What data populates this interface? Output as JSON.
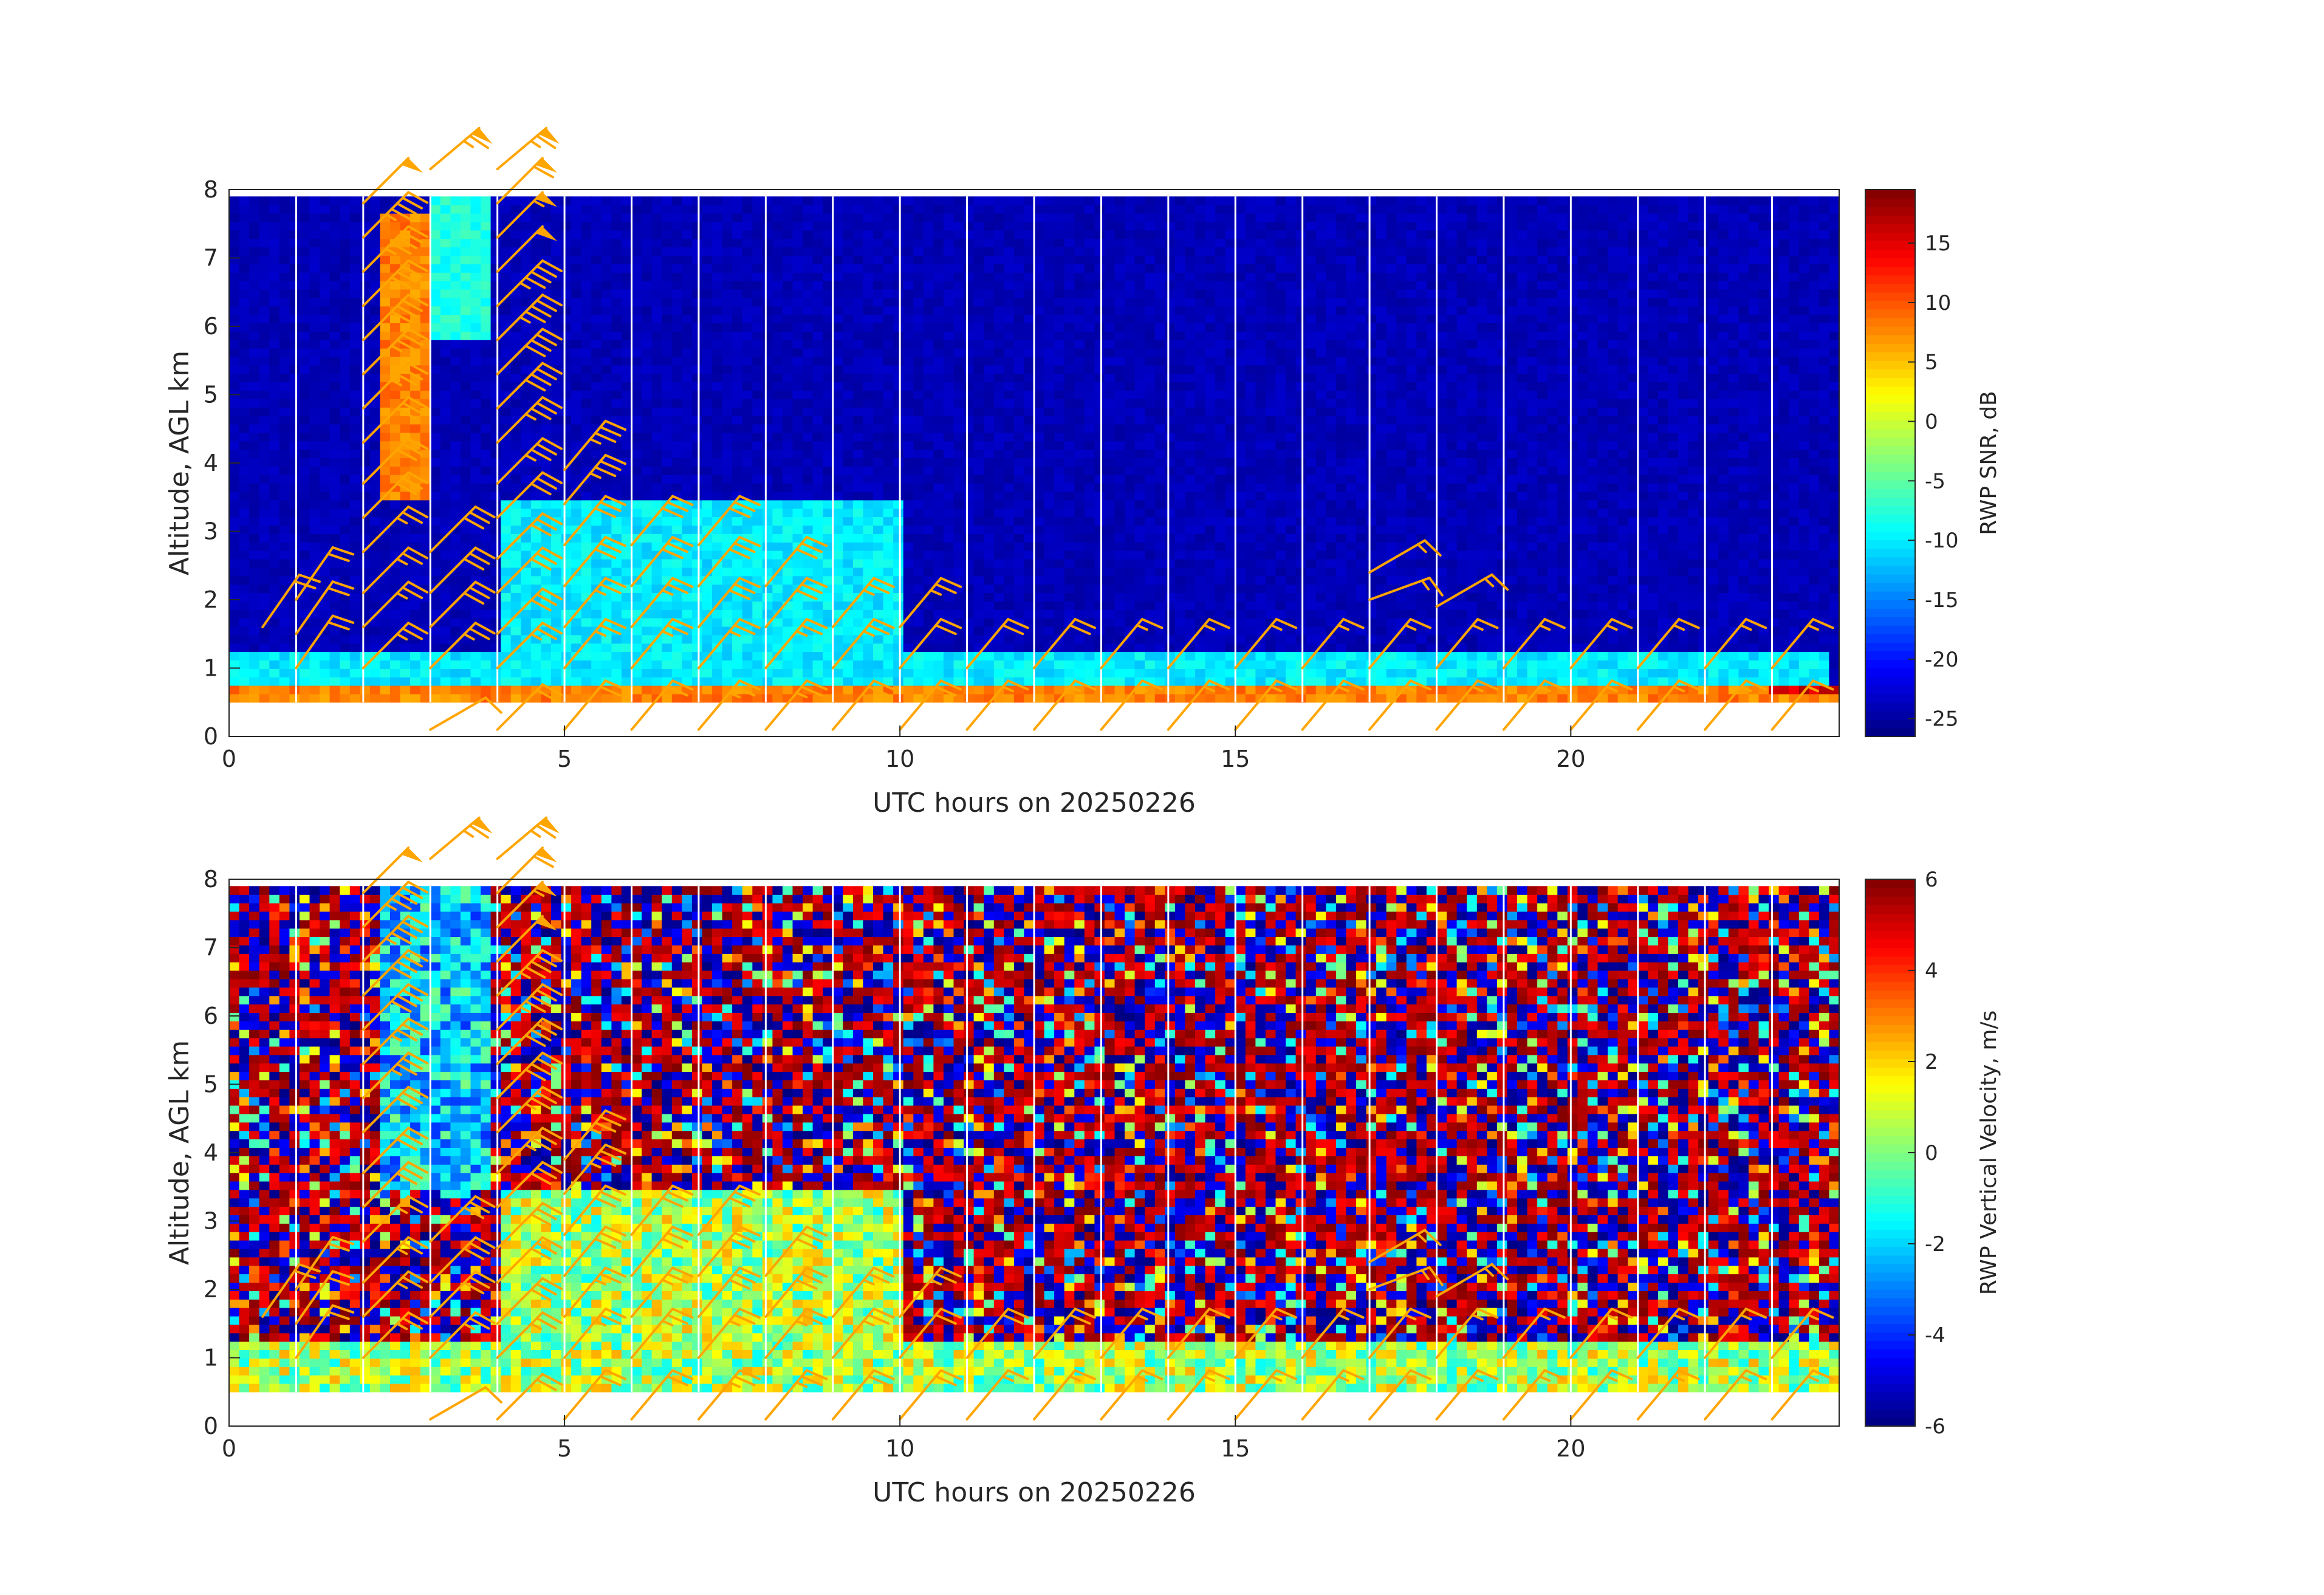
{
  "chart_data": [
    {
      "type": "heatmap",
      "name": "snr",
      "xlabel": "UTC hours on 20250226",
      "ylabel": "Altitude, AGL km",
      "xlim": [
        0,
        24
      ],
      "ylim": [
        0,
        8
      ],
      "xticks": [
        0,
        5,
        10,
        15,
        20
      ],
      "yticks": [
        0,
        1,
        2,
        3,
        4,
        5,
        6,
        7,
        8
      ],
      "colorbar": {
        "label": "RWP SNR, dB",
        "min": -26.5,
        "max": 19.5,
        "ticks": [
          15,
          10,
          5,
          0,
          -5,
          -10,
          -15,
          -20,
          -25
        ],
        "colormap": "jet"
      },
      "data_altitude_range_km": [
        0.5,
        7.9
      ],
      "background_value": -24,
      "features": [
        {
          "desc": "strong near-surface echo",
          "x": [
            0,
            24
          ],
          "alt": [
            0.5,
            0.8
          ],
          "value": 8
        },
        {
          "desc": "boundary layer echo",
          "x": [
            0,
            23.9
          ],
          "alt": [
            0.8,
            1.3
          ],
          "value": -10
        },
        {
          "desc": "precipitation column",
          "x": [
            2.3,
            3.0
          ],
          "alt": [
            3.5,
            7.6
          ],
          "value": 8
        },
        {
          "desc": "upper cloud plume",
          "x": [
            3.0,
            3.9
          ],
          "alt": [
            5.8,
            7.9
          ],
          "value": -8
        },
        {
          "desc": "descending layers",
          "x": [
            4.0,
            10.0
          ],
          "alt": [
            1.2,
            3.4
          ],
          "value": -10
        },
        {
          "desc": "bright surface band late day",
          "x": [
            23.0,
            24.0
          ],
          "alt": [
            0.6,
            0.8
          ],
          "value": 16
        }
      ],
      "gap_lines_hours": [
        1,
        2,
        3,
        4,
        5,
        6,
        7,
        8,
        9,
        10,
        11,
        12,
        13,
        14,
        15,
        16,
        17,
        18,
        19,
        20,
        21,
        22,
        23
      ]
    },
    {
      "type": "heatmap",
      "name": "vertical_velocity",
      "xlabel": "UTC hours on 20250226",
      "ylabel": "Altitude, AGL km",
      "xlim": [
        0,
        24
      ],
      "ylim": [
        0,
        8
      ],
      "xticks": [
        0,
        5,
        10,
        15,
        20
      ],
      "yticks": [
        0,
        1,
        2,
        3,
        4,
        5,
        6,
        7,
        8
      ],
      "colorbar": {
        "label": "RWP Vertical Velocity, m/s",
        "min": -6,
        "max": 6,
        "ticks": [
          6,
          4,
          2,
          0,
          -2,
          -4,
          -6
        ],
        "colormap": "jet"
      },
      "data_altitude_range_km": [
        0.5,
        7.9
      ],
      "background": "noise",
      "features": [
        {
          "desc": "near-zero velocities in boundary layer",
          "x": [
            0,
            24
          ],
          "alt": [
            0.5,
            1.3
          ],
          "value": 0.5
        },
        {
          "desc": "falling precipitation",
          "x": [
            2.3,
            3.9
          ],
          "alt": [
            3.5,
            7.9
          ],
          "value": -2
        },
        {
          "desc": "descending layers",
          "x": [
            4.0,
            10.0
          ],
          "alt": [
            1.2,
            3.4
          ],
          "value": 0.5
        }
      ],
      "gap_lines_hours": [
        1,
        2,
        3,
        4,
        5,
        6,
        7,
        8,
        9,
        10,
        11,
        12,
        13,
        14,
        15,
        16,
        17,
        18,
        19,
        20,
        21,
        22,
        23
      ]
    }
  ],
  "wind_barbs": {
    "color": "#ffa500",
    "units": "knots",
    "profiles": [
      {
        "hour": 0.5,
        "barbs": [
          [
            1.6,
            35,
            20
          ]
        ]
      },
      {
        "hour": 1.0,
        "barbs": [
          [
            1.0,
            35,
            20
          ],
          [
            1.5,
            35,
            20
          ],
          [
            2.0,
            35,
            20
          ]
        ]
      },
      {
        "hour": 2.0,
        "barbs": [
          [
            1.0,
            45,
            25
          ],
          [
            1.6,
            45,
            25
          ],
          [
            2.1,
            45,
            25
          ],
          [
            2.7,
            45,
            25
          ],
          [
            3.2,
            45,
            30
          ],
          [
            3.7,
            45,
            30
          ],
          [
            4.3,
            45,
            30
          ],
          [
            4.8,
            45,
            35
          ],
          [
            5.3,
            45,
            35
          ],
          [
            5.8,
            45,
            40
          ],
          [
            6.3,
            45,
            40
          ],
          [
            6.8,
            45,
            45
          ],
          [
            7.3,
            45,
            45
          ],
          [
            7.8,
            45,
            50
          ]
        ]
      },
      {
        "hour": 3.0,
        "barbs": [
          [
            0.1,
            60,
            10
          ],
          [
            1.0,
            45,
            25
          ],
          [
            1.6,
            45,
            30
          ],
          [
            2.1,
            45,
            30
          ],
          [
            2.7,
            45,
            30
          ],
          [
            8.3,
            50,
            65
          ]
        ]
      },
      {
        "hour": 4.0,
        "barbs": [
          [
            0.1,
            45,
            20
          ],
          [
            1.0,
            45,
            25
          ],
          [
            1.5,
            45,
            30
          ],
          [
            2.1,
            45,
            30
          ],
          [
            2.6,
            45,
            30
          ],
          [
            3.2,
            45,
            30
          ],
          [
            3.7,
            45,
            35
          ],
          [
            4.3,
            45,
            35
          ],
          [
            4.8,
            45,
            40
          ],
          [
            5.3,
            45,
            40
          ],
          [
            5.8,
            45,
            45
          ],
          [
            6.3,
            45,
            45
          ],
          [
            6.8,
            45,
            50
          ],
          [
            7.3,
            45,
            55
          ],
          [
            7.8,
            45,
            60
          ],
          [
            8.3,
            50,
            65
          ]
        ]
      },
      {
        "hour": 5.0,
        "barbs": [
          [
            0.1,
            40,
            20
          ],
          [
            1.0,
            40,
            25
          ],
          [
            1.6,
            40,
            25
          ],
          [
            2.2,
            40,
            30
          ],
          [
            2.8,
            40,
            30
          ],
          [
            3.4,
            40,
            35
          ],
          [
            3.9,
            40,
            35
          ]
        ]
      },
      {
        "hour": 6.0,
        "barbs": [
          [
            0.1,
            40,
            20
          ],
          [
            1.0,
            40,
            25
          ],
          [
            1.6,
            40,
            25
          ],
          [
            2.2,
            40,
            30
          ],
          [
            2.8,
            40,
            30
          ]
        ]
      },
      {
        "hour": 7.0,
        "barbs": [
          [
            0.1,
            40,
            25
          ],
          [
            1.0,
            40,
            25
          ],
          [
            1.6,
            40,
            30
          ],
          [
            2.2,
            40,
            30
          ],
          [
            2.8,
            40,
            30
          ]
        ]
      },
      {
        "hour": 8.0,
        "barbs": [
          [
            0.1,
            40,
            25
          ],
          [
            1.0,
            40,
            25
          ],
          [
            1.6,
            40,
            30
          ],
          [
            2.2,
            40,
            30
          ]
        ]
      },
      {
        "hour": 9.0,
        "barbs": [
          [
            0.1,
            40,
            20
          ],
          [
            1.0,
            40,
            25
          ],
          [
            1.6,
            40,
            25
          ]
        ]
      },
      {
        "hour": 10.0,
        "barbs": [
          [
            0.1,
            40,
            20
          ],
          [
            1.0,
            40,
            20
          ],
          [
            1.6,
            40,
            25
          ]
        ]
      },
      {
        "hour": 11.0,
        "barbs": [
          [
            0.1,
            40,
            15
          ],
          [
            1.0,
            40,
            20
          ]
        ]
      },
      {
        "hour": 12.0,
        "barbs": [
          [
            0.1,
            40,
            15
          ],
          [
            1.0,
            40,
            20
          ]
        ]
      },
      {
        "hour": 13.0,
        "barbs": [
          [
            0.1,
            40,
            15
          ],
          [
            1.0,
            40,
            15
          ]
        ]
      },
      {
        "hour": 14.0,
        "barbs": [
          [
            0.1,
            40,
            15
          ],
          [
            1.0,
            40,
            15
          ]
        ]
      },
      {
        "hour": 15.0,
        "barbs": [
          [
            0.1,
            40,
            15
          ],
          [
            1.0,
            40,
            15
          ]
        ]
      },
      {
        "hour": 16.0,
        "barbs": [
          [
            0.1,
            40,
            15
          ],
          [
            1.0,
            40,
            15
          ]
        ]
      },
      {
        "hour": 17.0,
        "barbs": [
          [
            0.1,
            40,
            15
          ],
          [
            1.0,
            40,
            15
          ],
          [
            2.0,
            70,
            15
          ],
          [
            2.4,
            60,
            15
          ]
        ]
      },
      {
        "hour": 18.0,
        "barbs": [
          [
            0.1,
            40,
            15
          ],
          [
            1.0,
            40,
            15
          ],
          [
            1.9,
            60,
            15
          ]
        ]
      },
      {
        "hour": 19.0,
        "barbs": [
          [
            0.1,
            40,
            15
          ],
          [
            1.0,
            40,
            15
          ]
        ]
      },
      {
        "hour": 20.0,
        "barbs": [
          [
            0.1,
            40,
            15
          ],
          [
            1.0,
            40,
            15
          ]
        ]
      },
      {
        "hour": 21.0,
        "barbs": [
          [
            0.1,
            40,
            15
          ],
          [
            1.0,
            40,
            15
          ]
        ]
      },
      {
        "hour": 22.0,
        "barbs": [
          [
            0.1,
            40,
            15
          ],
          [
            1.0,
            40,
            15
          ]
        ]
      },
      {
        "hour": 23.0,
        "barbs": [
          [
            0.1,
            40,
            15
          ],
          [
            1.0,
            40,
            15
          ]
        ]
      }
    ]
  }
}
